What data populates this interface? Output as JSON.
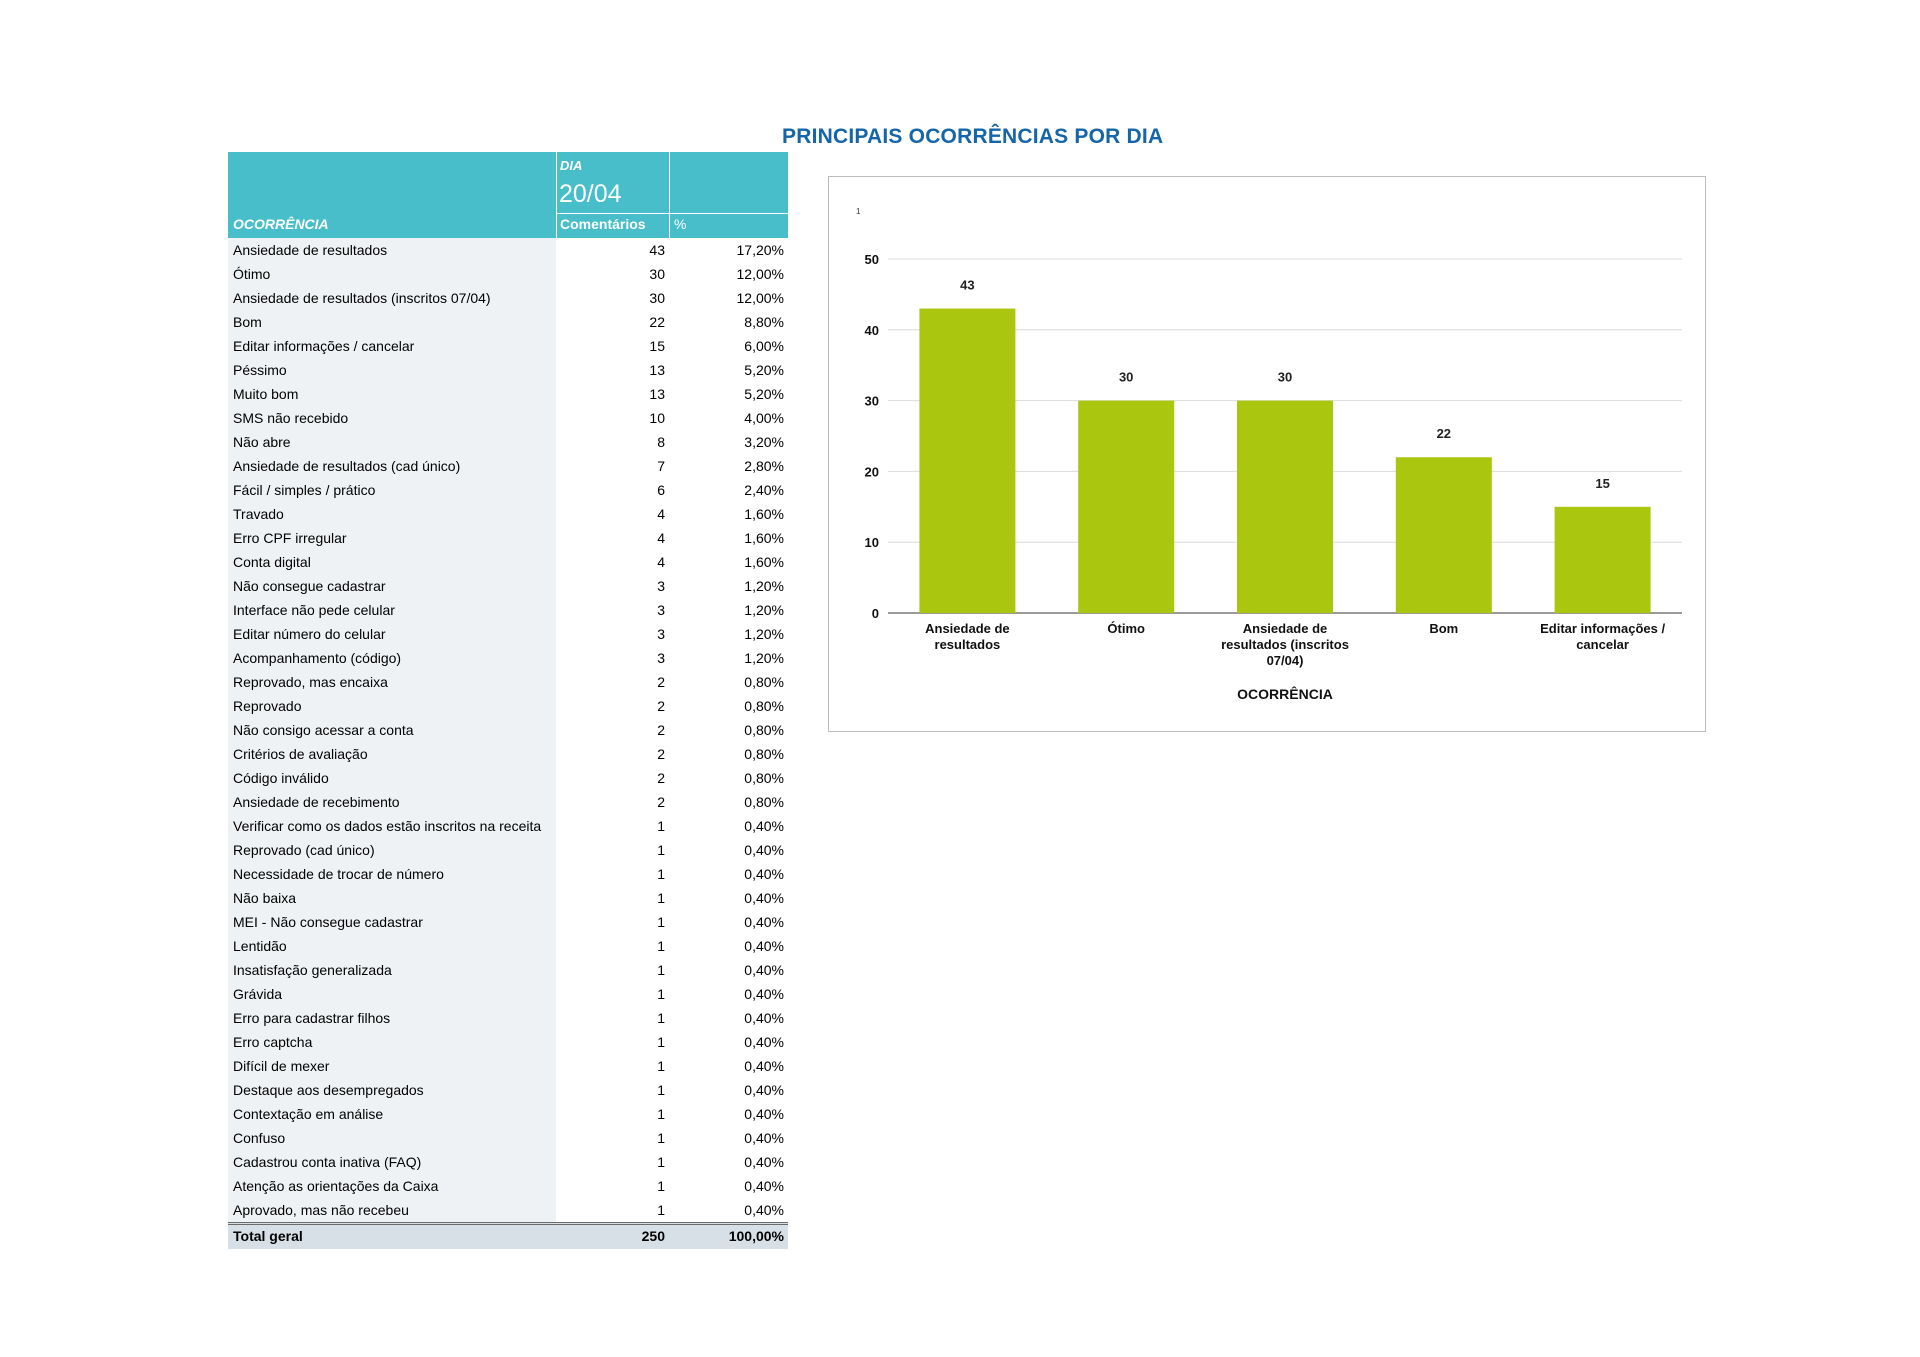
{
  "title": "PRINCIPAIS OCORRÊNCIAS POR DIA",
  "table": {
    "header": {
      "dia_label": "DIA",
      "date": "20/04",
      "occurrence_label": "OCORRÊNCIA",
      "comments_label": "Comentários",
      "percent_label": "%"
    },
    "rows": [
      {
        "name": "Ansiedade de resultados",
        "count": "43",
        "pct": "17,20%"
      },
      {
        "name": "Ótimo",
        "count": "30",
        "pct": "12,00%"
      },
      {
        "name": "Ansiedade de resultados (inscritos 07/04)",
        "count": "30",
        "pct": "12,00%"
      },
      {
        "name": "Bom",
        "count": "22",
        "pct": "8,80%"
      },
      {
        "name": "Editar informações / cancelar",
        "count": "15",
        "pct": "6,00%"
      },
      {
        "name": "Péssimo",
        "count": "13",
        "pct": "5,20%"
      },
      {
        "name": "Muito bom",
        "count": "13",
        "pct": "5,20%"
      },
      {
        "name": "SMS não recebido",
        "count": "10",
        "pct": "4,00%"
      },
      {
        "name": "Não abre",
        "count": "8",
        "pct": "3,20%"
      },
      {
        "name": "Ansiedade de resultados (cad único)",
        "count": "7",
        "pct": "2,80%"
      },
      {
        "name": "Fácil / simples / prático",
        "count": "6",
        "pct": "2,40%"
      },
      {
        "name": "Travado",
        "count": "4",
        "pct": "1,60%"
      },
      {
        "name": "Erro CPF irregular",
        "count": "4",
        "pct": "1,60%"
      },
      {
        "name": "Conta digital",
        "count": "4",
        "pct": "1,60%"
      },
      {
        "name": "Não consegue cadastrar",
        "count": "3",
        "pct": "1,20%"
      },
      {
        "name": "Interface não pede celular",
        "count": "3",
        "pct": "1,20%"
      },
      {
        "name": "Editar número do celular",
        "count": "3",
        "pct": "1,20%"
      },
      {
        "name": "Acompanhamento (código)",
        "count": "3",
        "pct": "1,20%"
      },
      {
        "name": "Reprovado, mas encaixa",
        "count": "2",
        "pct": "0,80%"
      },
      {
        "name": "Reprovado",
        "count": "2",
        "pct": "0,80%"
      },
      {
        "name": "Não consigo acessar a conta",
        "count": "2",
        "pct": "0,80%"
      },
      {
        "name": "Critérios de avaliação",
        "count": "2",
        "pct": "0,80%"
      },
      {
        "name": "Código inválido",
        "count": "2",
        "pct": "0,80%"
      },
      {
        "name": "Ansiedade de recebimento",
        "count": "2",
        "pct": "0,80%"
      },
      {
        "name": "Verificar como os dados estão inscritos na receita",
        "count": "1",
        "pct": "0,40%"
      },
      {
        "name": "Reprovado (cad único)",
        "count": "1",
        "pct": "0,40%"
      },
      {
        "name": "Necessidade de trocar de número",
        "count": "1",
        "pct": "0,40%"
      },
      {
        "name": "Não baixa",
        "count": "1",
        "pct": "0,40%"
      },
      {
        "name": "MEI - Não consegue cadastrar",
        "count": "1",
        "pct": "0,40%"
      },
      {
        "name": "Lentidão",
        "count": "1",
        "pct": "0,40%"
      },
      {
        "name": "Insatisfação generalizada",
        "count": "1",
        "pct": "0,40%"
      },
      {
        "name": "Grávida",
        "count": "1",
        "pct": "0,40%"
      },
      {
        "name": "Erro para cadastrar filhos",
        "count": "1",
        "pct": "0,40%"
      },
      {
        "name": "Erro captcha",
        "count": "1",
        "pct": "0,40%"
      },
      {
        "name": "Difícil de mexer",
        "count": "1",
        "pct": "0,40%"
      },
      {
        "name": "Destaque aos desempregados",
        "count": "1",
        "pct": "0,40%"
      },
      {
        "name": "Contextação em análise",
        "count": "1",
        "pct": "0,40%"
      },
      {
        "name": "Confuso",
        "count": "1",
        "pct": "0,40%"
      },
      {
        "name": "Cadastrou conta inativa (FAQ)",
        "count": "1",
        "pct": "0,40%"
      },
      {
        "name": "Atenção as orientações da Caixa",
        "count": "1",
        "pct": "0,40%"
      },
      {
        "name": "Aprovado, mas não recebeu",
        "count": "1",
        "pct": "0,40%"
      }
    ],
    "total": {
      "label": "Total geral",
      "count": "250",
      "pct": "100,00%"
    }
  },
  "chart_data": {
    "type": "bar",
    "title": "",
    "corner_mark": "1",
    "categories": [
      [
        "Ansiedade de",
        "resultados"
      ],
      [
        "Ótimo"
      ],
      [
        "Ansiedade de",
        "resultados (inscritos",
        "07/04)"
      ],
      [
        "Bom"
      ],
      [
        "Editar informações /",
        "cancelar"
      ]
    ],
    "values": [
      43,
      30,
      30,
      22,
      15
    ],
    "xlabel": "OCORRÊNCIA",
    "ylabel": "",
    "ylim": [
      0,
      50
    ],
    "yticks": [
      0,
      10,
      20,
      30,
      40,
      50
    ],
    "grid": true,
    "bar_color": "#aac60f",
    "data_labels": true
  },
  "colors": {
    "title": "#1565a8",
    "header_bg": "#47bec9",
    "name_col_bg": "#eff2f5",
    "total_bg": "#d7e0e6",
    "bar": "#aac60f"
  }
}
